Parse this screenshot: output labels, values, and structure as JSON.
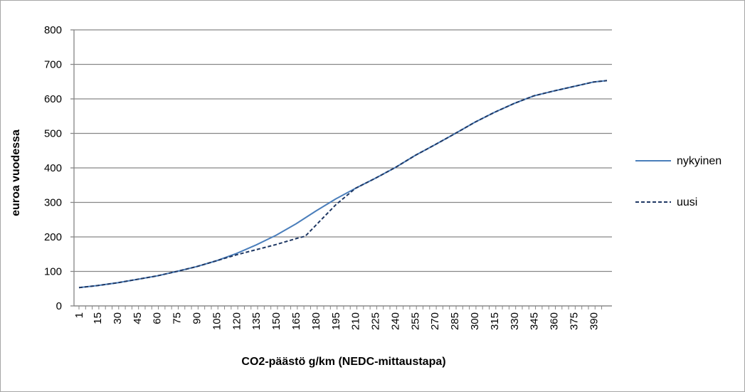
{
  "chart_data": {
    "type": "line",
    "title": "",
    "xlabel": "CO2-päästö g/km (NEDC-mittaustapa)",
    "ylabel": "euroa vuodessa",
    "xlim": [
      1,
      400
    ],
    "ylim": [
      0,
      800
    ],
    "y_ticks": [
      0,
      100,
      200,
      300,
      400,
      500,
      600,
      700,
      800
    ],
    "x_tick_labels": [
      "1",
      "15",
      "30",
      "45",
      "60",
      "75",
      "90",
      "105",
      "120",
      "135",
      "150",
      "165",
      "180",
      "195",
      "210",
      "225",
      "240",
      "255",
      "270",
      "285",
      "300",
      "315",
      "330",
      "345",
      "360",
      "375",
      "390"
    ],
    "grid": true,
    "legend_position": "right",
    "series": [
      {
        "name": "nykyinen",
        "style": "solid",
        "color": "#4a7ebb",
        "x": [
          1,
          15,
          30,
          45,
          60,
          75,
          90,
          105,
          120,
          135,
          150,
          165,
          180,
          195,
          210,
          225,
          240,
          255,
          270,
          285,
          300,
          315,
          330,
          345,
          360,
          375,
          390,
          400
        ],
        "y": [
          53,
          59,
          67,
          77,
          87,
          100,
          114,
          131,
          152,
          177,
          205,
          238,
          275,
          310,
          341,
          370,
          401,
          436,
          467,
          499,
          532,
          561,
          587,
          609,
          623,
          636,
          649,
          653
        ]
      },
      {
        "name": "uusi",
        "style": "dashed",
        "color": "#1f3864",
        "x": [
          1,
          15,
          30,
          45,
          60,
          75,
          90,
          105,
          120,
          135,
          150,
          165,
          172,
          195,
          210,
          225,
          240,
          255,
          270,
          285,
          300,
          315,
          330,
          345,
          360,
          375,
          390,
          400
        ],
        "y": [
          53,
          59,
          67,
          77,
          87,
          100,
          114,
          131,
          148,
          163,
          178,
          195,
          202,
          293,
          341,
          370,
          401,
          436,
          467,
          499,
          532,
          561,
          587,
          609,
          623,
          636,
          649,
          653
        ]
      }
    ]
  }
}
